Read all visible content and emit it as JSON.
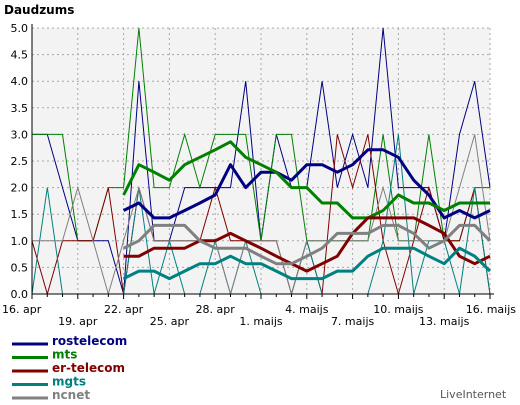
{
  "chart_data": {
    "type": "line",
    "ylabel": "Daudzums",
    "ylim": [
      0,
      5
    ],
    "y_ticks": [
      "0.0",
      "0.5",
      "1.0",
      "1.5",
      "2.0",
      "2.5",
      "3.0",
      "3.5",
      "4.0",
      "4.5",
      "5.0"
    ],
    "x_labels_row1": [
      {
        "day": 0,
        "text": "16. apr"
      },
      {
        "day": 6,
        "text": "22. apr"
      },
      {
        "day": 12,
        "text": "28. apr"
      },
      {
        "day": 18,
        "text": "4. maijs"
      },
      {
        "day": 24,
        "text": "10. maijs"
      },
      {
        "day": 30,
        "text": "16. maijs"
      }
    ],
    "x_labels_row2": [
      {
        "day": 3,
        "text": "19. apr"
      },
      {
        "day": 9,
        "text": "25. apr"
      },
      {
        "day": 15,
        "text": "1. maijs"
      },
      {
        "day": 21,
        "text": "7. maijs"
      },
      {
        "day": 27,
        "text": "13. maijs"
      }
    ],
    "grid": true,
    "legend_position": "bottom-left",
    "brand": "LiveInternet",
    "series": [
      {
        "name": "rostelecom",
        "color": "#000080",
        "daily": [
          3,
          3,
          2,
          1,
          1,
          1,
          0,
          4,
          1,
          1,
          2,
          2,
          2,
          2,
          4,
          1,
          3,
          2,
          2,
          4,
          2,
          3,
          2,
          5,
          2,
          2,
          2,
          1,
          3,
          4,
          2
        ],
        "average": [
          null,
          null,
          null,
          null,
          null,
          null,
          1.57,
          1.71,
          1.43,
          1.43,
          1.57,
          1.71,
          1.86,
          2.43,
          2.0,
          2.29,
          2.29,
          2.14,
          2.43,
          2.43,
          2.29,
          2.43,
          2.71,
          2.71,
          2.57,
          2.14,
          1.86,
          1.43,
          1.57,
          1.43,
          1.57
        ]
      },
      {
        "name": "mts",
        "color": "#008000",
        "daily": [
          3,
          3,
          3,
          1,
          1,
          2,
          2,
          5,
          2,
          2,
          3,
          2,
          3,
          3,
          3,
          1,
          3,
          3,
          1,
          1,
          1,
          1,
          1,
          3,
          1,
          1,
          3,
          1,
          1,
          2,
          2
        ],
        "average": [
          null,
          null,
          null,
          null,
          null,
          null,
          1.86,
          2.43,
          2.29,
          2.14,
          2.43,
          2.57,
          2.71,
          2.86,
          2.57,
          2.43,
          2.29,
          2.0,
          2.0,
          1.71,
          1.71,
          1.43,
          1.43,
          1.57,
          1.86,
          1.71,
          1.71,
          1.57,
          1.71,
          1.71,
          1.71
        ]
      },
      {
        "name": "er-telecom",
        "color": "#800000",
        "daily": [
          1,
          0,
          1,
          1,
          1,
          2,
          0,
          2,
          1,
          1,
          1,
          1,
          2,
          1,
          1,
          1,
          1,
          0,
          1,
          0,
          3,
          2,
          3,
          1,
          0,
          1,
          2,
          1,
          1,
          2,
          0
        ],
        "average": [
          null,
          null,
          null,
          null,
          null,
          null,
          0.71,
          0.71,
          0.86,
          0.86,
          0.86,
          1.0,
          1.0,
          1.14,
          1.0,
          0.86,
          0.71,
          0.57,
          0.43,
          0.57,
          0.71,
          1.14,
          1.43,
          1.43,
          1.43,
          1.43,
          1.29,
          1.14,
          0.71,
          0.57,
          0.71
        ]
      },
      {
        "name": "mgts",
        "color": "#008080",
        "daily": [
          0,
          2,
          0,
          0,
          0,
          0,
          0,
          2,
          0,
          1,
          0,
          0,
          1,
          0,
          1,
          0,
          0,
          0,
          1,
          0,
          0,
          0,
          0,
          1,
          3,
          0,
          1,
          1,
          0,
          2,
          0
        ],
        "average": [
          null,
          null,
          null,
          null,
          null,
          null,
          0.29,
          0.43,
          0.43,
          0.29,
          0.43,
          0.57,
          0.57,
          0.71,
          0.57,
          0.57,
          0.43,
          0.29,
          0.29,
          0.29,
          0.43,
          0.43,
          0.71,
          0.86,
          0.86,
          0.86,
          0.71,
          0.57,
          0.86,
          0.71,
          0.43
        ]
      },
      {
        "name": "ncnet",
        "color": "#808080",
        "daily": [
          1,
          1,
          1,
          2,
          1,
          0,
          1,
          2,
          1,
          1,
          1,
          1,
          1,
          0,
          1,
          1,
          1,
          0,
          1,
          1,
          1,
          1,
          1,
          2,
          1,
          1,
          1,
          1,
          2,
          3,
          1
        ],
        "average": [
          null,
          null,
          null,
          null,
          null,
          null,
          0.86,
          1.0,
          1.29,
          1.29,
          1.29,
          1.0,
          0.86,
          0.86,
          0.86,
          0.71,
          0.57,
          0.57,
          0.71,
          0.86,
          1.14,
          1.14,
          1.14,
          1.29,
          1.29,
          1.14,
          0.86,
          1.0,
          1.29,
          1.29,
          1.0
        ]
      }
    ]
  }
}
